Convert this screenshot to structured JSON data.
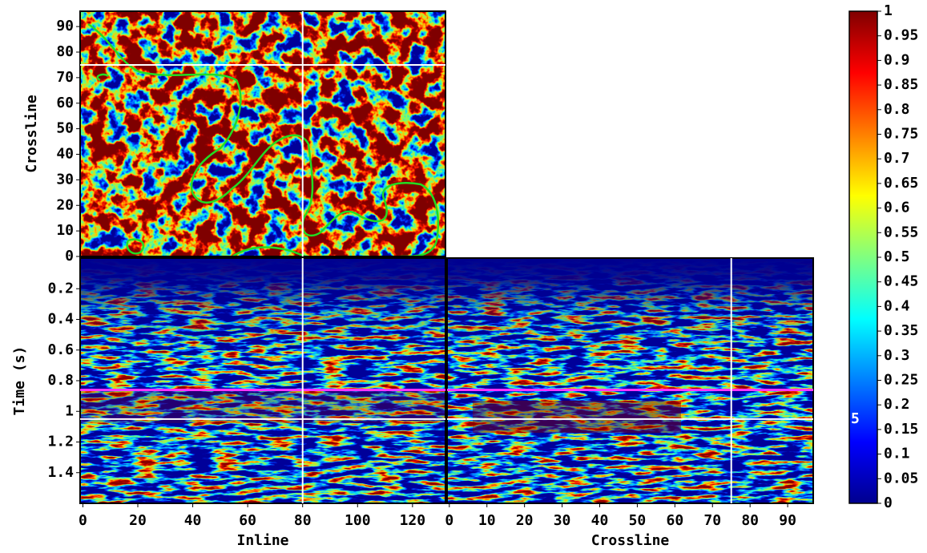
{
  "chart_data": [
    {
      "type": "heatmap",
      "ylabel": "Crossline",
      "xlim": [
        -1,
        132
      ],
      "ylim": [
        0,
        96
      ],
      "yticks": [
        0,
        10,
        20,
        30,
        40,
        50,
        60,
        70,
        80,
        90
      ],
      "crossline_marker": 75,
      "inline_marker": 80
    },
    {
      "type": "heatmap",
      "xlabel": "Inline",
      "ylabel": "Time (s)",
      "xlim": [
        -1,
        132
      ],
      "ylim": [
        1.6,
        0
      ],
      "xticks": [
        0,
        20,
        40,
        60,
        80,
        100,
        120
      ],
      "yticks": [
        0.2,
        0.4,
        0.6,
        0.8,
        1,
        1.2,
        1.4
      ],
      "time_marker": 1.05,
      "inline_marker": 80,
      "horizon": 0.86
    },
    {
      "type": "heatmap",
      "xlabel": "Crossline",
      "xlim": [
        -0.6,
        96.8
      ],
      "ylim": [
        1.6,
        0
      ],
      "xticks": [
        0,
        10,
        20,
        30,
        40,
        50,
        60,
        70,
        80,
        90
      ],
      "time_marker": 1.05,
      "crossline_marker": 75,
      "horizon": 0.86
    },
    {
      "type": "colorbar",
      "ylim": [
        0,
        1
      ],
      "yticks": [
        0,
        0.05,
        0.1,
        0.15,
        0.2,
        0.25,
        0.3,
        0.35,
        0.4,
        0.45,
        0.5,
        0.55,
        0.6,
        0.65,
        0.7,
        0.75,
        0.8,
        0.85,
        0.9,
        0.95,
        1
      ]
    }
  ],
  "annotation": "5"
}
